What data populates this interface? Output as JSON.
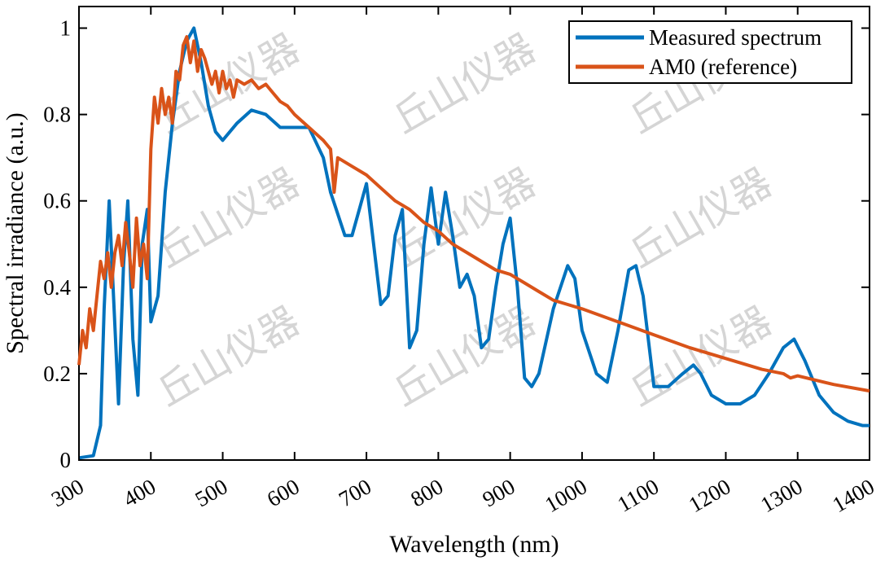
{
  "chart_data": {
    "type": "line",
    "title": "",
    "xlabel": "Wavelength (nm)",
    "ylabel": "Spectral irradiance (a.u.)",
    "xlim": [
      300,
      1400
    ],
    "ylim": [
      0,
      1.05
    ],
    "x_ticks": [
      300,
      400,
      500,
      600,
      700,
      800,
      900,
      1000,
      1100,
      1200,
      1300,
      1400
    ],
    "y_ticks": [
      0,
      0.2,
      0.4,
      0.6,
      0.8,
      1
    ],
    "grid": false,
    "legend_position": "top-right",
    "watermark_text": "丘山仪器",
    "series": [
      {
        "name": "Measured spectrum",
        "color": "#0072BD",
        "x": [
          300,
          320,
          330,
          335,
          342,
          348,
          355,
          362,
          368,
          375,
          382,
          388,
          395,
          400,
          410,
          420,
          430,
          440,
          450,
          460,
          470,
          480,
          490,
          500,
          520,
          540,
          560,
          580,
          600,
          620,
          640,
          650,
          660,
          670,
          680,
          690,
          700,
          710,
          720,
          730,
          740,
          750,
          760,
          770,
          780,
          790,
          800,
          810,
          820,
          830,
          840,
          850,
          860,
          870,
          880,
          890,
          900,
          910,
          920,
          930,
          940,
          960,
          980,
          990,
          1000,
          1020,
          1035,
          1050,
          1065,
          1075,
          1085,
          1095,
          1100,
          1120,
          1140,
          1155,
          1165,
          1180,
          1200,
          1220,
          1240,
          1260,
          1280,
          1295,
          1310,
          1330,
          1350,
          1370,
          1390,
          1400
        ],
        "y": [
          0.005,
          0.01,
          0.08,
          0.35,
          0.6,
          0.38,
          0.13,
          0.45,
          0.6,
          0.28,
          0.15,
          0.5,
          0.58,
          0.32,
          0.38,
          0.62,
          0.78,
          0.9,
          0.97,
          1.0,
          0.92,
          0.82,
          0.76,
          0.74,
          0.78,
          0.81,
          0.8,
          0.77,
          0.77,
          0.77,
          0.7,
          0.62,
          0.57,
          0.52,
          0.52,
          0.58,
          0.64,
          0.5,
          0.36,
          0.38,
          0.52,
          0.58,
          0.26,
          0.3,
          0.5,
          0.63,
          0.5,
          0.62,
          0.52,
          0.4,
          0.43,
          0.38,
          0.26,
          0.28,
          0.4,
          0.5,
          0.56,
          0.4,
          0.19,
          0.17,
          0.2,
          0.35,
          0.45,
          0.42,
          0.3,
          0.2,
          0.18,
          0.3,
          0.44,
          0.45,
          0.38,
          0.24,
          0.17,
          0.17,
          0.2,
          0.22,
          0.2,
          0.15,
          0.13,
          0.13,
          0.15,
          0.2,
          0.26,
          0.28,
          0.23,
          0.15,
          0.11,
          0.09,
          0.08,
          0.08
        ]
      },
      {
        "name": "AM0 (reference)",
        "color": "#D95319",
        "x": [
          300,
          305,
          310,
          315,
          320,
          325,
          330,
          335,
          340,
          345,
          350,
          355,
          360,
          365,
          370,
          375,
          380,
          385,
          390,
          395,
          400,
          405,
          410,
          415,
          420,
          425,
          430,
          435,
          440,
          445,
          450,
          455,
          460,
          465,
          470,
          475,
          480,
          485,
          490,
          495,
          500,
          505,
          510,
          515,
          520,
          530,
          540,
          550,
          560,
          570,
          580,
          590,
          600,
          620,
          640,
          650,
          655,
          660,
          680,
          700,
          720,
          740,
          760,
          780,
          800,
          820,
          840,
          860,
          880,
          900,
          920,
          940,
          960,
          980,
          1000,
          1050,
          1100,
          1150,
          1200,
          1250,
          1280,
          1290,
          1300,
          1350,
          1400
        ],
        "y": [
          0.22,
          0.3,
          0.26,
          0.35,
          0.3,
          0.38,
          0.46,
          0.42,
          0.48,
          0.4,
          0.48,
          0.52,
          0.45,
          0.55,
          0.48,
          0.4,
          0.56,
          0.45,
          0.5,
          0.42,
          0.72,
          0.84,
          0.78,
          0.86,
          0.8,
          0.84,
          0.78,
          0.9,
          0.88,
          0.96,
          0.98,
          0.92,
          0.97,
          0.9,
          0.95,
          0.93,
          0.9,
          0.87,
          0.9,
          0.85,
          0.9,
          0.86,
          0.88,
          0.84,
          0.88,
          0.87,
          0.88,
          0.86,
          0.87,
          0.85,
          0.83,
          0.82,
          0.8,
          0.77,
          0.74,
          0.72,
          0.62,
          0.7,
          0.68,
          0.66,
          0.63,
          0.6,
          0.58,
          0.55,
          0.53,
          0.5,
          0.48,
          0.46,
          0.44,
          0.43,
          0.41,
          0.39,
          0.37,
          0.36,
          0.35,
          0.32,
          0.29,
          0.26,
          0.235,
          0.21,
          0.2,
          0.19,
          0.195,
          0.175,
          0.16
        ]
      }
    ]
  }
}
